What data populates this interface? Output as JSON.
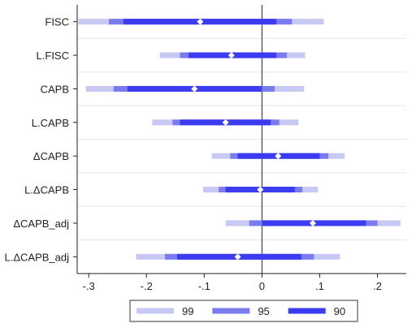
{
  "chart_data": {
    "type": "coefficient_plot",
    "xlim": [
      -0.32,
      0.25
    ],
    "x_ticks": [
      {
        "value": -0.3,
        "label": "-.3"
      },
      {
        "value": -0.2,
        "label": "-.2"
      },
      {
        "value": -0.1,
        "label": "-.1"
      },
      {
        "value": 0,
        "label": "0"
      },
      {
        "value": 0.1,
        "label": ".1"
      },
      {
        "value": 0.2,
        "label": ".2"
      }
    ],
    "reference_line": 0,
    "grid": "horizontal",
    "legend_position": "bottom",
    "intervals": [
      {
        "name": "99",
        "color": "#c8c8f5"
      },
      {
        "name": "95",
        "color": "#7b7bf0"
      },
      {
        "name": "90",
        "color": "#3b3bf2"
      }
    ],
    "rows": [
      {
        "label": "FISC",
        "estimate": -0.107,
        "ci99": [
          -0.318,
          0.107
        ],
        "ci95": [
          -0.265,
          0.052
        ],
        "ci90": [
          -0.24,
          0.025
        ]
      },
      {
        "label": "L.FISC",
        "estimate": -0.053,
        "ci99": [
          -0.177,
          0.075
        ],
        "ci95": [
          -0.142,
          0.043
        ],
        "ci90": [
          -0.127,
          0.025
        ]
      },
      {
        "label": "CAPB",
        "estimate": -0.117,
        "ci99": [
          -0.305,
          0.073
        ],
        "ci95": [
          -0.257,
          0.022
        ],
        "ci90": [
          -0.233,
          0.0
        ]
      },
      {
        "label": "L.CAPB",
        "estimate": -0.063,
        "ci99": [
          -0.19,
          0.063
        ],
        "ci95": [
          -0.155,
          0.03
        ],
        "ci90": [
          -0.142,
          0.015
        ]
      },
      {
        "label": "ΔCAPB",
        "estimate": 0.028,
        "ci99": [
          -0.087,
          0.143
        ],
        "ci95": [
          -0.055,
          0.115
        ],
        "ci90": [
          -0.042,
          0.1
        ]
      },
      {
        "label": "L.ΔCAPB",
        "estimate": -0.003,
        "ci99": [
          -0.102,
          0.097
        ],
        "ci95": [
          -0.075,
          0.07
        ],
        "ci90": [
          -0.063,
          0.057
        ]
      },
      {
        "label": "ΔCAPB_adj",
        "estimate": 0.088,
        "ci99": [
          -0.063,
          0.24
        ],
        "ci95": [
          -0.022,
          0.2
        ],
        "ci90": [
          0.0,
          0.18
        ]
      },
      {
        "label": "L.ΔCAPB_adj",
        "estimate": -0.042,
        "ci99": [
          -0.218,
          0.135
        ],
        "ci95": [
          -0.168,
          0.09
        ],
        "ci90": [
          -0.147,
          0.068
        ]
      }
    ]
  }
}
